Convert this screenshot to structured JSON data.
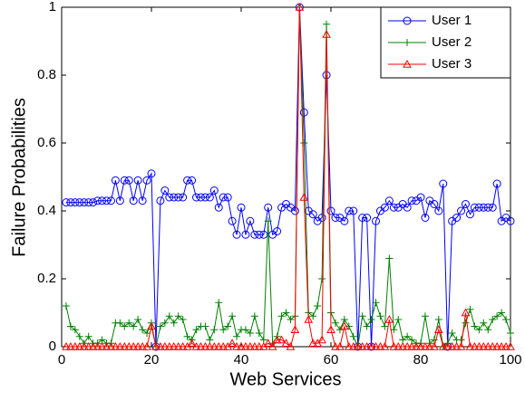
{
  "chart_data": {
    "type": "line",
    "x_label": "Web Services",
    "y_label": "Failure Probabilities",
    "x": [
      1,
      2,
      3,
      4,
      5,
      6,
      7,
      8,
      9,
      10,
      11,
      12,
      13,
      14,
      15,
      16,
      17,
      18,
      19,
      20,
      21,
      22,
      23,
      24,
      25,
      26,
      27,
      28,
      29,
      30,
      31,
      32,
      33,
      34,
      35,
      36,
      37,
      38,
      39,
      40,
      41,
      42,
      43,
      44,
      45,
      46,
      47,
      48,
      49,
      50,
      51,
      52,
      53,
      54,
      55,
      56,
      57,
      58,
      59,
      60,
      61,
      62,
      63,
      64,
      65,
      66,
      67,
      68,
      69,
      70,
      71,
      72,
      73,
      74,
      75,
      76,
      77,
      78,
      79,
      80,
      81,
      82,
      83,
      84,
      85,
      86,
      87,
      88,
      89,
      90,
      91,
      92,
      93,
      94,
      95,
      96,
      97,
      98,
      99,
      100
    ],
    "series": [
      {
        "name": "User 1",
        "color": "#0000ff",
        "marker": "circle",
        "values": [
          0.425,
          0.425,
          0.425,
          0.425,
          0.425,
          0.425,
          0.425,
          0.43,
          0.43,
          0.43,
          0.43,
          0.49,
          0.43,
          0.49,
          0.49,
          0.43,
          0.49,
          0.43,
          0.49,
          0.51,
          0.0,
          0.43,
          0.46,
          0.44,
          0.44,
          0.44,
          0.44,
          0.49,
          0.49,
          0.44,
          0.44,
          0.44,
          0.44,
          0.46,
          0.41,
          0.44,
          0.44,
          0.37,
          0.33,
          0.41,
          0.33,
          0.37,
          0.33,
          0.33,
          0.33,
          0.41,
          0.33,
          0.34,
          0.41,
          0.42,
          0.41,
          0.4,
          1.0,
          0.69,
          0.4,
          0.39,
          0.37,
          0.38,
          0.8,
          0.4,
          0.38,
          0.38,
          0.37,
          0.4,
          0.4,
          0.0,
          0.38,
          0.38,
          0.0,
          0.37,
          0.4,
          0.41,
          0.43,
          0.41,
          0.41,
          0.42,
          0.41,
          0.43,
          0.43,
          0.44,
          0.38,
          0.43,
          0.42,
          0.4,
          0.48,
          0.0,
          0.37,
          0.38,
          0.4,
          0.42,
          0.39,
          0.41,
          0.41,
          0.41,
          0.41,
          0.41,
          0.48,
          0.37,
          0.38,
          0.37
        ]
      },
      {
        "name": "User 2",
        "color": "#008000",
        "marker": "plus",
        "values": [
          0.12,
          0.06,
          0.05,
          0.03,
          0.01,
          0.03,
          0.01,
          0.01,
          0.02,
          0.01,
          0.01,
          0.07,
          0.07,
          0.06,
          0.07,
          0.06,
          0.08,
          0.05,
          0.04,
          0.07,
          0.0,
          0.06,
          0.07,
          0.09,
          0.07,
          0.09,
          0.08,
          0.03,
          0.02,
          0.05,
          0.06,
          0.06,
          0.02,
          0.05,
          0.13,
          0.05,
          0.06,
          0.09,
          0.03,
          0.05,
          0.05,
          0.04,
          0.09,
          0.04,
          0.02,
          0.37,
          0.01,
          0.03,
          0.09,
          0.1,
          0.08,
          0.09,
          1.0,
          0.6,
          0.1,
          0.09,
          0.12,
          0.2,
          0.95,
          0.1,
          0.07,
          0.05,
          0.08,
          0.06,
          0.03,
          0.0,
          0.09,
          0.06,
          0.08,
          0.13,
          0.09,
          0.06,
          0.26,
          0.05,
          0.08,
          0.02,
          0.03,
          0.02,
          0.01,
          0.01,
          0.09,
          0.01,
          0.02,
          0.08,
          0.0,
          0.01,
          0.04,
          0.02,
          0.02,
          0.07,
          0.11,
          0.06,
          0.05,
          0.07,
          0.05,
          0.08,
          0.09,
          0.1,
          0.08,
          0.04
        ]
      },
      {
        "name": "User 3",
        "color": "#ff0000",
        "marker": "triangle",
        "values": [
          0,
          0,
          0,
          0,
          0,
          0,
          0,
          0,
          0,
          0,
          0,
          0,
          0,
          0,
          0,
          0,
          0,
          0,
          0,
          0.06,
          0,
          0,
          0,
          0,
          0,
          0,
          0,
          0,
          0.01,
          0,
          0,
          0,
          0,
          0,
          0,
          0,
          0,
          0.01,
          0,
          0,
          0,
          0,
          0,
          0,
          0,
          0.01,
          0,
          0.02,
          0.02,
          0.01,
          0,
          0.05,
          1.0,
          0.44,
          0.08,
          0.01,
          0.01,
          0.02,
          0.92,
          0.05,
          0,
          0,
          0.06,
          0,
          0,
          0,
          0,
          0,
          0,
          0,
          0,
          0,
          0.08,
          0,
          0,
          0,
          0,
          0,
          0,
          0,
          0,
          0,
          0,
          0.05,
          0,
          0,
          0,
          0,
          0,
          0.1,
          0,
          0,
          0,
          0,
          0,
          0,
          0,
          0,
          0,
          0
        ]
      }
    ],
    "xlim": [
      0,
      100
    ],
    "xticks": [
      0,
      20,
      40,
      60,
      80,
      100
    ],
    "ylim": [
      0,
      1
    ],
    "yticks": [
      0,
      0.2,
      0.4,
      0.6,
      0.8,
      1
    ],
    "grid": false,
    "legend": "northeast"
  }
}
